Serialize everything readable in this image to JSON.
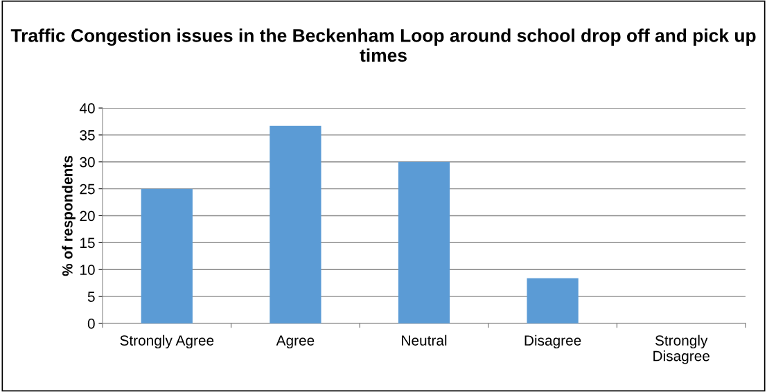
{
  "chart_data": {
    "type": "bar",
    "title": "Traffic Congestion issues in the Beckenham Loop around school drop off and pick up times",
    "ylabel": "% of respondents",
    "categories": [
      "Strongly Agree",
      "Agree",
      "Neutral",
      "Disagree",
      "Strongly Disagree"
    ],
    "values": [
      25,
      36.7,
      30,
      8.4,
      0
    ],
    "color": "#5b9bd5",
    "ylim": [
      0,
      40
    ],
    "yticks": [
      0,
      5,
      10,
      15,
      20,
      25,
      30,
      35,
      40
    ],
    "grid": "y",
    "legend": false
  }
}
